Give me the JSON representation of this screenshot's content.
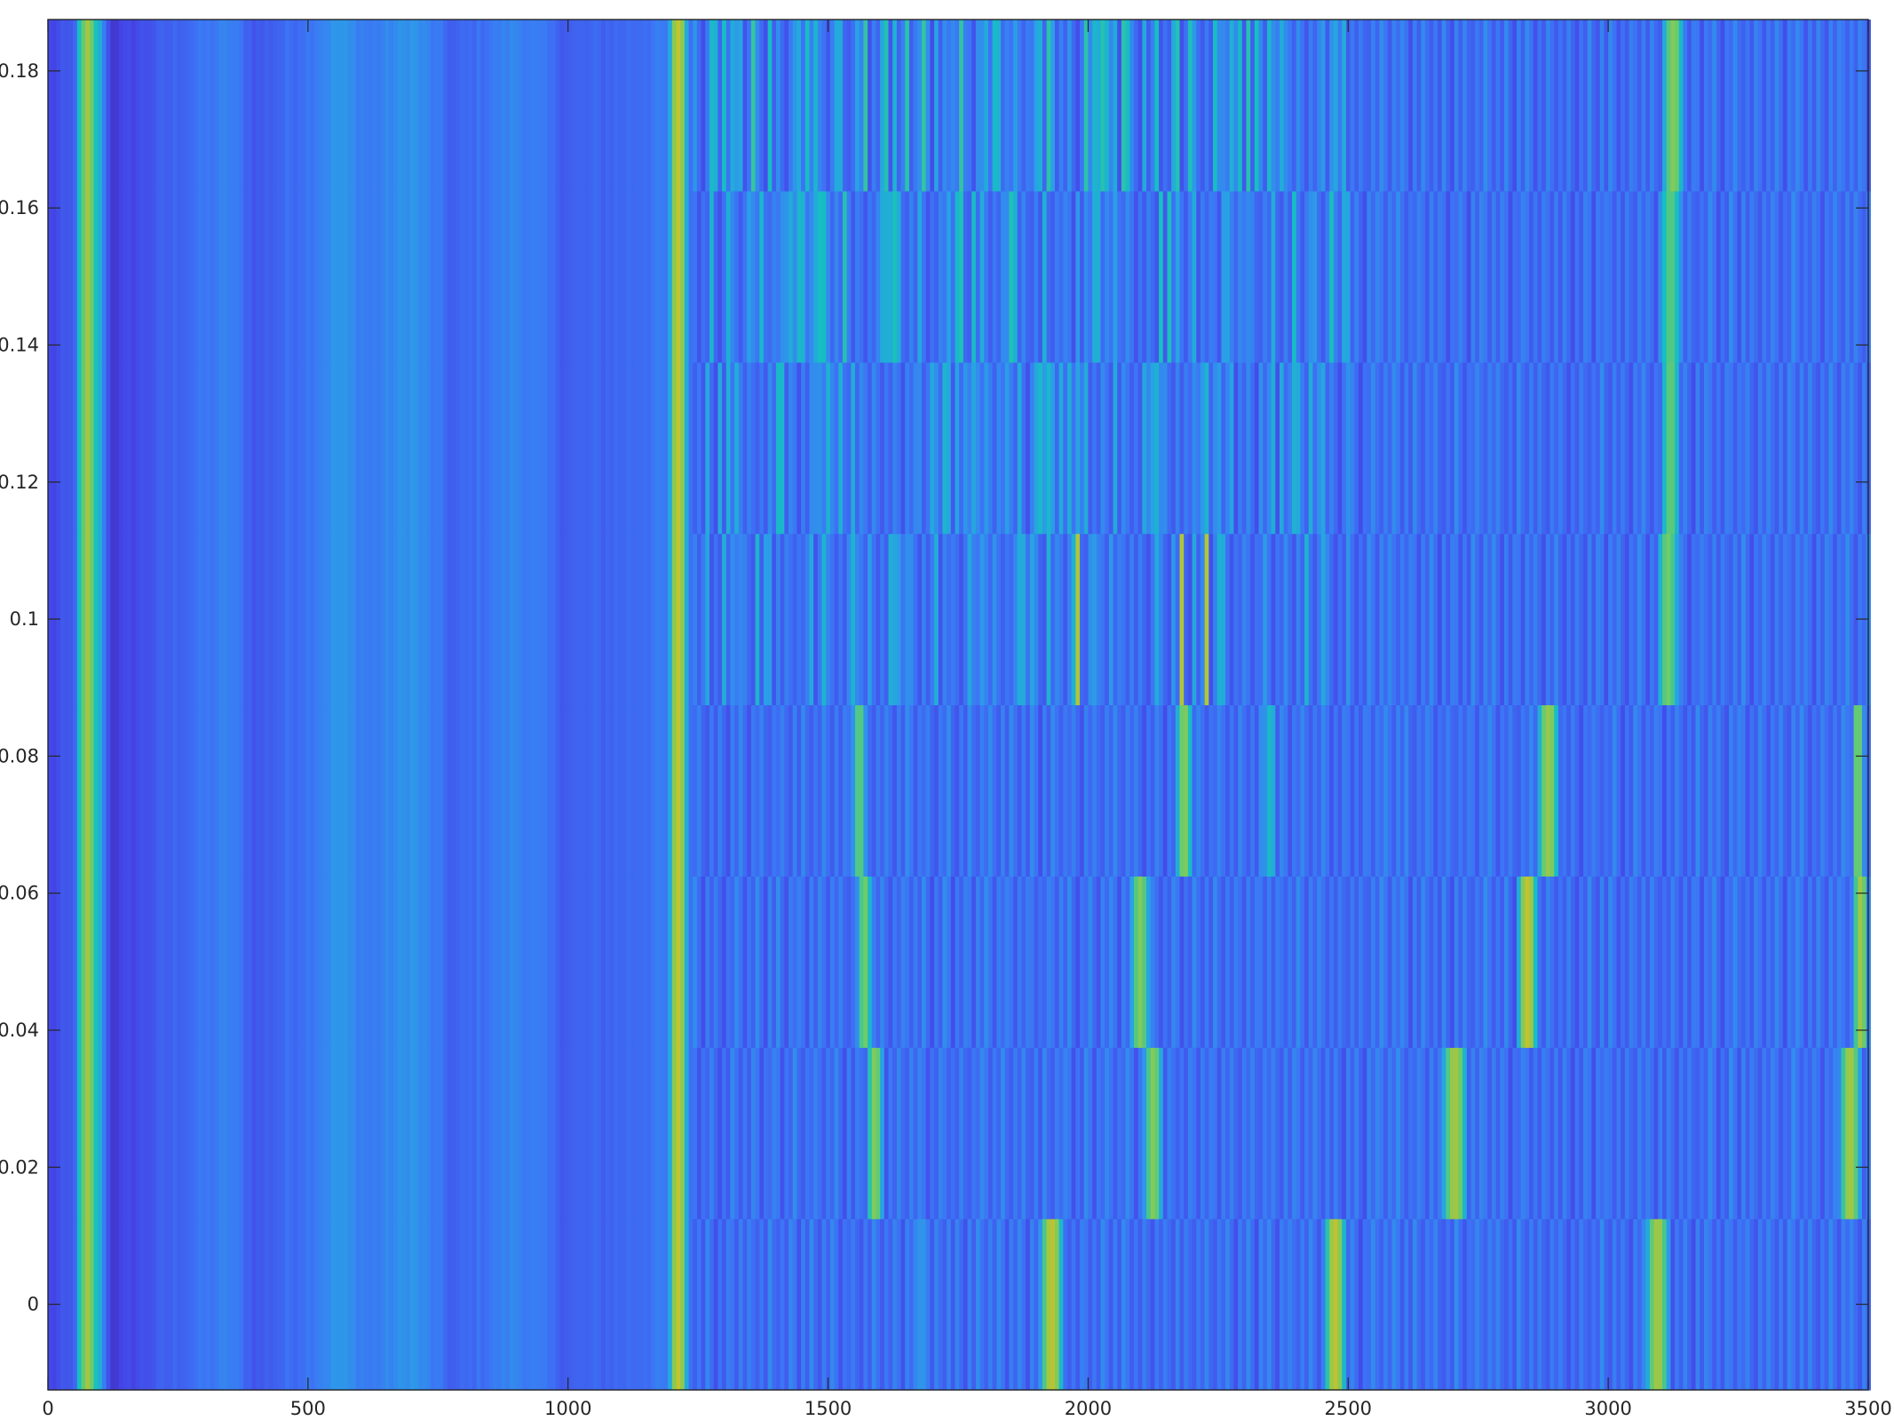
{
  "chart_data": {
    "type": "heatmap",
    "title": "",
    "xlabel": "",
    "ylabel": "",
    "xlim": [
      0,
      3500
    ],
    "ylim": [
      -0.0125,
      0.1875
    ],
    "x_ticks": [
      "0",
      "500",
      "1000",
      "1500",
      "2000",
      "2500",
      "3000",
      "3500"
    ],
    "y_ticks": [
      "0",
      "0.02",
      "0.04",
      "0.06",
      "0.08",
      "0.1",
      "0.12",
      "0.14",
      "0.16",
      "0.18"
    ],
    "grid": false,
    "colorbar": false,
    "colormap": "parula",
    "colormap_stops": [
      "#3e26a8",
      "#4444e6",
      "#3c74f5",
      "#2aa0e6",
      "#16bfc1",
      "#6fcc68",
      "#c8c22a",
      "#f5d21e"
    ],
    "row_centers": [
      0,
      0.025,
      0.05,
      0.075,
      0.1,
      0.125,
      0.15,
      0.175
    ],
    "row_height": 0.025,
    "background_profile": [
      [
        0,
        0.14
      ],
      [
        50,
        0.2
      ],
      [
        60,
        0.55
      ],
      [
        75,
        0.8
      ],
      [
        88,
        0.65
      ],
      [
        105,
        0.4
      ],
      [
        120,
        0.1
      ],
      [
        200,
        0.2
      ],
      [
        350,
        0.33
      ],
      [
        400,
        0.2
      ],
      [
        500,
        0.3
      ],
      [
        560,
        0.4
      ],
      [
        620,
        0.3
      ],
      [
        700,
        0.4
      ],
      [
        780,
        0.22
      ],
      [
        900,
        0.35
      ],
      [
        1000,
        0.22
      ],
      [
        1100,
        0.25
      ],
      [
        1180,
        0.3
      ]
    ],
    "common_bursts": [
      {
        "x": 1212,
        "half_width": 24,
        "peak": 0.85
      }
    ],
    "row_bursts": [
      [
        {
          "x": 1930,
          "half_width": 30,
          "peak": 0.84
        },
        {
          "x": 2475,
          "half_width": 28,
          "peak": 0.84
        },
        {
          "x": 3095,
          "half_width": 30,
          "peak": 0.8
        },
        {
          "x": 1680,
          "half_width": 25,
          "peak": 0.4
        }
      ],
      [
        {
          "x": 1590,
          "half_width": 22,
          "peak": 0.75
        },
        {
          "x": 2125,
          "half_width": 25,
          "peak": 0.75
        },
        {
          "x": 2705,
          "half_width": 32,
          "peak": 0.8
        },
        {
          "x": 3465,
          "half_width": 28,
          "peak": 0.8
        }
      ],
      [
        {
          "x": 1570,
          "half_width": 20,
          "peak": 0.72
        },
        {
          "x": 2100,
          "half_width": 25,
          "peak": 0.75
        },
        {
          "x": 2845,
          "half_width": 26,
          "peak": 0.85
        },
        {
          "x": 3485,
          "half_width": 20,
          "peak": 0.8
        }
      ],
      [
        {
          "x": 1560,
          "half_width": 18,
          "peak": 0.7
        },
        {
          "x": 2185,
          "half_width": 22,
          "peak": 0.75
        },
        {
          "x": 2350,
          "half_width": 18,
          "peak": 0.55
        },
        {
          "x": 2885,
          "half_width": 28,
          "peak": 0.78
        },
        {
          "x": 3480,
          "half_width": 15,
          "peak": 0.75
        }
      ],
      [
        {
          "x": 3115,
          "half_width": 28,
          "peak": 0.72
        }
      ],
      [
        {
          "x": 3120,
          "half_width": 25,
          "peak": 0.7
        }
      ],
      [
        {
          "x": 3120,
          "half_width": 30,
          "peak": 0.68
        }
      ],
      [
        {
          "x": 3125,
          "half_width": 28,
          "peak": 0.75
        }
      ]
    ],
    "striped_rows": [
      {
        "row": 4,
        "from": 1240,
        "to": 2500,
        "density": 0.5
      },
      {
        "row": 5,
        "from": 1240,
        "to": 2500,
        "density": 0.6
      },
      {
        "row": 6,
        "from": 1240,
        "to": 2500,
        "density": 0.7
      },
      {
        "row": 7,
        "from": 1240,
        "to": 2500,
        "density": 0.8
      }
    ]
  }
}
